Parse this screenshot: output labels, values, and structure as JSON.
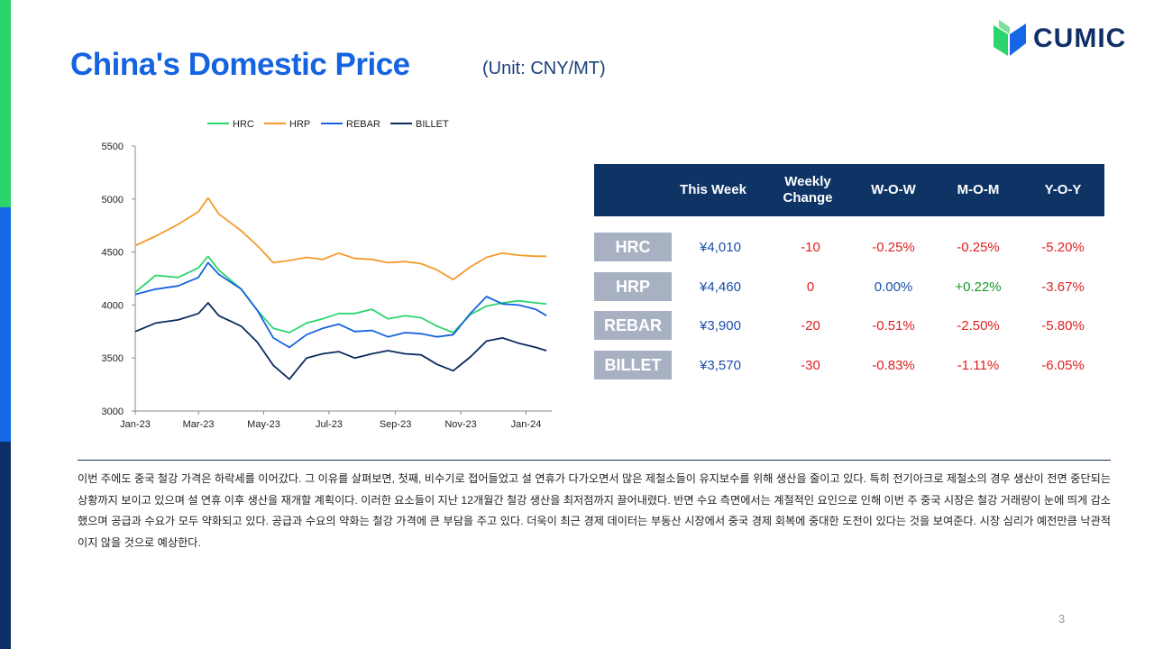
{
  "page": {
    "title": "China's Domestic Price",
    "unit": "(Unit: CNY/MT)",
    "brand": "CUMIC",
    "page_number": "3",
    "commentary": "이번 주에도 중국 철강 가격은 하락세를 이어갔다. 그 이유를 살펴보면, 첫째, 비수기로 접어들었고 설 연휴가 다가오면서 많은 제철소들이 유지보수를 위해 생산을 줄이고 있다. 특히 전기아크로 제철소의 경우 생산이 전면 중단되는 상황까지 보이고 있으며 설 연휴 이후 생산을 재개할 계획이다. 이러한 요소들이 지난 12개월간 철강 생산을 최저점까지 끌어내렸다. 반면 수요 측면에서는 계절적인 요인으로 인해 이번 주 중국 시장은 철강 거래량이 눈에 띄게 감소했으며 공급과 수요가 모두 약화되고 있다. 공급과 수요의 약화는 철강 가격에 큰 부담을 주고 있다. 더욱이 최근 경제 데이터는 부동산 시장에서 중국 경제 회복에 중대한 도전이 있다는 것을 보여준다. 시장 심리가 예전만큼 낙관적이지 않을 것으로 예상한다."
  },
  "colors": {
    "accent": "#1563e0",
    "navy": "#0e3466",
    "label_gray": "#a7b1c2",
    "red": "#e02020",
    "green": "#1a9a2e"
  },
  "table": {
    "headers": [
      "This Week",
      "Weekly Change",
      "W-O-W",
      "M-O-M",
      "Y-O-Y"
    ],
    "rows": [
      {
        "label": "HRC",
        "this_week": "¥4,010",
        "weekly_change": "-10",
        "wow": "-0.25%",
        "mom": "-0.25%",
        "yoy": "-5.20%"
      },
      {
        "label": "HRP",
        "this_week": "¥4,460",
        "weekly_change": "0",
        "wow": "0.00%",
        "mom": "+0.22%",
        "yoy": "-3.67%"
      },
      {
        "label": "REBAR",
        "this_week": "¥3,900",
        "weekly_change": "-20",
        "wow": "-0.51%",
        "mom": "-2.50%",
        "yoy": "-5.80%"
      },
      {
        "label": "BILLET",
        "this_week": "¥3,570",
        "weekly_change": "-30",
        "wow": "-0.83%",
        "mom": "-1.11%",
        "yoy": "-6.05%"
      }
    ]
  },
  "chart_data": {
    "type": "line",
    "x": [
      "2023-01-01",
      "2023-01-20",
      "2023-02-10",
      "2023-03-01",
      "2023-03-10",
      "2023-03-20",
      "2023-04-10",
      "2023-04-25",
      "2023-05-10",
      "2023-05-25",
      "2023-06-10",
      "2023-06-25",
      "2023-07-10",
      "2023-07-25",
      "2023-08-10",
      "2023-08-25",
      "2023-09-10",
      "2023-09-25",
      "2023-10-10",
      "2023-10-25",
      "2023-11-10",
      "2023-11-25",
      "2023-12-10",
      "2023-12-25",
      "2024-01-10",
      "2024-01-20"
    ],
    "x_tick_labels": [
      "Jan-23",
      "Mar-23",
      "May-23",
      "Jul-23",
      "Sep-23",
      "Nov-23",
      "Jan-24"
    ],
    "x_tick_dates": [
      "2023-01-01",
      "2023-03-01",
      "2023-05-01",
      "2023-07-01",
      "2023-09-01",
      "2023-11-01",
      "2024-01-01"
    ],
    "ylim": [
      3000,
      5500
    ],
    "y_ticks": [
      3000,
      3500,
      4000,
      4500,
      5000,
      5500
    ],
    "legend_position": "top",
    "grid": false,
    "series": [
      {
        "name": "HRC",
        "color": "#2bd56c",
        "values": [
          4120,
          4280,
          4260,
          4350,
          4460,
          4330,
          4150,
          3950,
          3780,
          3740,
          3830,
          3870,
          3920,
          3920,
          3960,
          3870,
          3900,
          3880,
          3800,
          3740,
          3910,
          3990,
          4020,
          4040,
          4020,
          4010
        ]
      },
      {
        "name": "HRP",
        "color": "#f39a2b",
        "values": [
          4560,
          4650,
          4760,
          4880,
          5010,
          4860,
          4700,
          4560,
          4400,
          4420,
          4450,
          4430,
          4490,
          4440,
          4430,
          4400,
          4410,
          4390,
          4330,
          4240,
          4360,
          4450,
          4490,
          4470,
          4460,
          4460
        ]
      },
      {
        "name": "REBAR",
        "color": "#1563e0",
        "values": [
          4100,
          4150,
          4180,
          4260,
          4400,
          4290,
          4150,
          3950,
          3690,
          3600,
          3720,
          3780,
          3820,
          3750,
          3760,
          3700,
          3740,
          3730,
          3700,
          3720,
          3920,
          4080,
          4010,
          4000,
          3960,
          3900
        ]
      },
      {
        "name": "BILLET",
        "color": "#0b2b5e",
        "values": [
          3750,
          3830,
          3860,
          3920,
          4020,
          3900,
          3800,
          3650,
          3430,
          3300,
          3500,
          3540,
          3560,
          3500,
          3540,
          3570,
          3540,
          3530,
          3440,
          3380,
          3510,
          3660,
          3690,
          3640,
          3600,
          3570
        ]
      }
    ]
  }
}
